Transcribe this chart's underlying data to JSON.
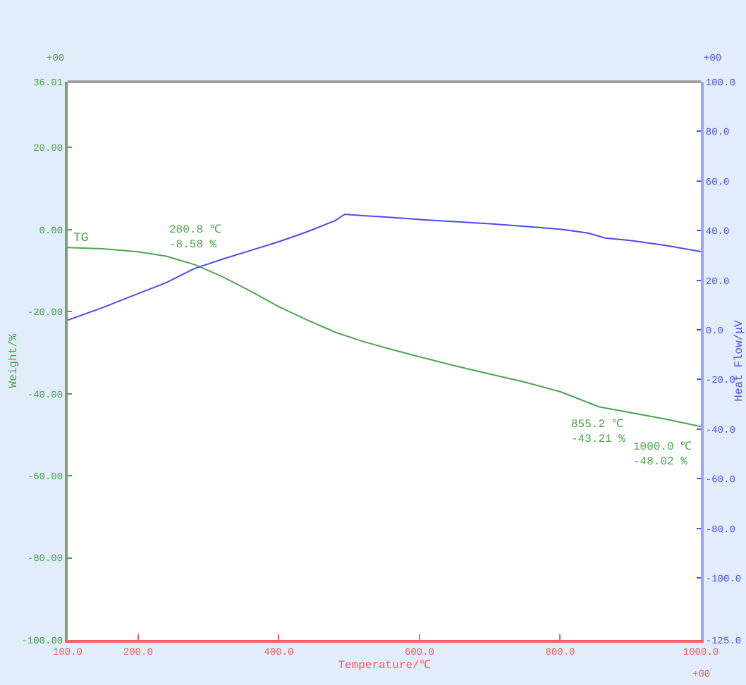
{
  "chart_data": {
    "type": "line",
    "xlabel": "Temperature/℃",
    "ylabel": "Weight/%",
    "y2label": "Heat Flow/μV",
    "x": [
      100,
      150,
      200,
      240,
      280.8,
      320,
      360,
      400,
      440,
      480,
      520,
      560,
      600,
      650,
      700,
      750,
      800,
      855.2,
      900,
      950,
      1000
    ],
    "series": [
      {
        "name": "TG",
        "color": "#4ca64c",
        "values": [
          -4.4,
          -4.7,
          -5.4,
          -6.5,
          -8.58,
          -11.5,
          -15,
          -18.8,
          -22,
          -25,
          -27.3,
          -29.2,
          -31,
          -33.2,
          -35.2,
          -37.2,
          -39.5,
          -43.21,
          -44.6,
          -46.2,
          -48.02
        ]
      },
      {
        "color": "#4b4bf0",
        "axis": "y2",
        "x": [
          100,
          150,
          200,
          240,
          280,
          320,
          360,
          400,
          440,
          480,
          494,
          520,
          560,
          604,
          650,
          704,
          760,
          804,
          840,
          864,
          900,
          950,
          1000
        ],
        "values": [
          3.9,
          9,
          14.6,
          19,
          24.7,
          28.5,
          32,
          35.5,
          39.5,
          44,
          46.6,
          46,
          45.3,
          44.4,
          43.6,
          42.7,
          41.5,
          40.4,
          39,
          37,
          36,
          34,
          31.5
        ]
      }
    ],
    "xlim": [
      100,
      1000
    ],
    "xticks": [
      {
        "value": 100,
        "label": "100.0"
      },
      {
        "value": 200,
        "label": "200.0"
      },
      {
        "value": 400,
        "label": "400.0"
      },
      {
        "value": 600,
        "label": "600.0"
      },
      {
        "value": 800,
        "label": "800.0"
      },
      {
        "value": 1000,
        "label": "1000.0"
      }
    ],
    "ylim": [
      -100,
      36.01
    ],
    "yticks": [
      {
        "value": -100,
        "label": "-100.00"
      },
      {
        "value": -80,
        "label": "-80.00"
      },
      {
        "value": -60,
        "label": "-60.00"
      },
      {
        "value": -40,
        "label": "-40.00"
      },
      {
        "value": -20,
        "label": "-20.00"
      },
      {
        "value": 0,
        "label": "0.00"
      },
      {
        "value": 20,
        "label": "20.00"
      },
      {
        "value": 36.01,
        "label": "36.01"
      }
    ],
    "y2lim": [
      -125,
      100
    ],
    "y2ticks": [
      {
        "value": -125,
        "label": "-125.0"
      },
      {
        "value": -100,
        "label": "-100.0"
      },
      {
        "value": -80,
        "label": "-80.0"
      },
      {
        "value": -60,
        "label": "-60.0"
      },
      {
        "value": -40,
        "label": "-40.0"
      },
      {
        "value": -20,
        "label": "-20.0"
      },
      {
        "value": 0,
        "label": "0.0"
      },
      {
        "value": 20,
        "label": "20.0"
      },
      {
        "value": 40,
        "label": "40.0"
      },
      {
        "value": 60,
        "label": "60.0"
      },
      {
        "value": 80,
        "label": "80.0"
      },
      {
        "value": 100,
        "label": "100.0"
      }
    ],
    "annotations": [
      {
        "text": "280.8 ℃\n-8.58 %",
        "x": 280.8,
        "y": -8.58
      },
      {
        "text": "855.2 ℃\n-43.21 %",
        "x": 855.2,
        "y": -43.21
      },
      {
        "text": "1000.0 ℃\n-48.02 %",
        "x": 1000,
        "y": -48.02
      },
      "+00",
      "+00",
      "+00"
    ],
    "grid": false,
    "legend": false,
    "marker": "none",
    "line_style": "solid"
  }
}
